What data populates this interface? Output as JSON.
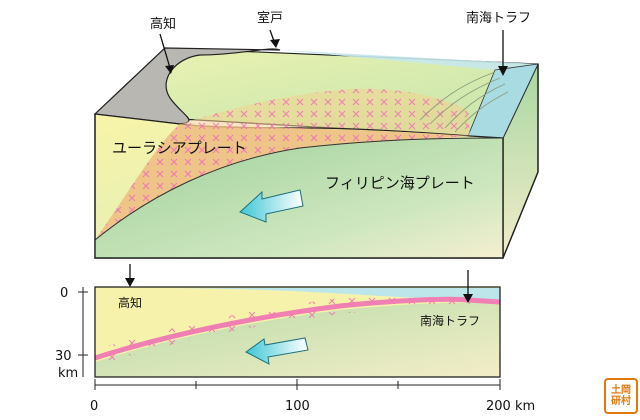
{
  "block_diagram": {
    "labels": {
      "kochi": "高知",
      "muroto": "室戸",
      "nankai_trough": "南海トラフ",
      "eurasian_plate": "ユーラシアプレート",
      "philippine_sea_plate": "フィリピン海プレート"
    }
  },
  "cross_section": {
    "labels": {
      "kochi": "高知",
      "nankai_trough": "南海トラフ"
    },
    "depth_axis": {
      "tick_0": "0",
      "tick_30": "30",
      "unit": "km"
    },
    "distance_axis": {
      "tick_0": "0",
      "tick_100": "100",
      "tick_200": "200 km"
    }
  },
  "stamp": {
    "line1": "土岡",
    "line2": "研村"
  },
  "colors": {
    "eurasian_yellow": "#f6ef9a",
    "philippine_green": "#c9e6b6",
    "seismic_zone_orange": "#eebc82",
    "ocean": "#bde6ea",
    "land_gray": "#b9b7b1",
    "slab_pink": "#f07fb4",
    "arrow_cyan": "#3fc7d6"
  }
}
